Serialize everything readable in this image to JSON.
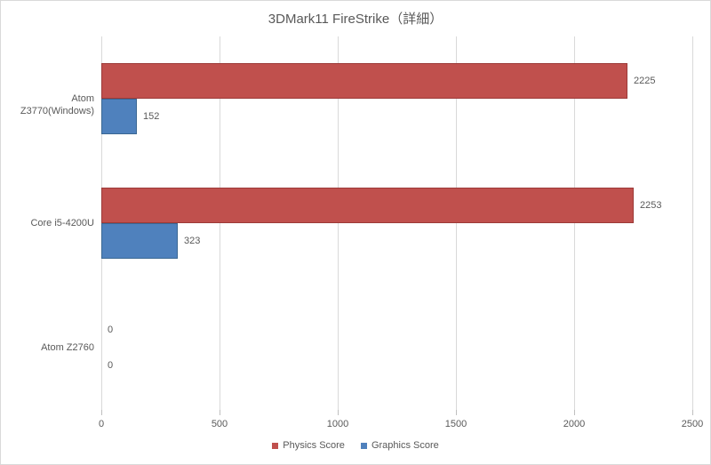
{
  "chart_data": {
    "type": "bar",
    "orientation": "horizontal",
    "title": "3DMark11 FireStrike（詳細）",
    "categories": [
      "Atom Z3770(Windows)",
      "Core i5-4200U",
      "Atom Z2760"
    ],
    "series": [
      {
        "name": "Physics Score",
        "color": "#c0504d",
        "border_color": "#9c3a38",
        "values": [
          2225,
          2253,
          0
        ]
      },
      {
        "name": "Graphics Score",
        "color": "#4f81bd",
        "border_color": "#3a6793",
        "values": [
          152,
          323,
          0
        ]
      }
    ],
    "xlim": [
      0,
      2500
    ],
    "xticks": [
      0,
      500,
      1000,
      1500,
      2000,
      2500
    ],
    "grid": true,
    "legend_position": "bottom",
    "value_labels_shown": true
  },
  "colors": {
    "background": "#ffffff",
    "frame_border": "#d9d9d9",
    "gridline": "#d9d9d9",
    "text": "#595959"
  }
}
